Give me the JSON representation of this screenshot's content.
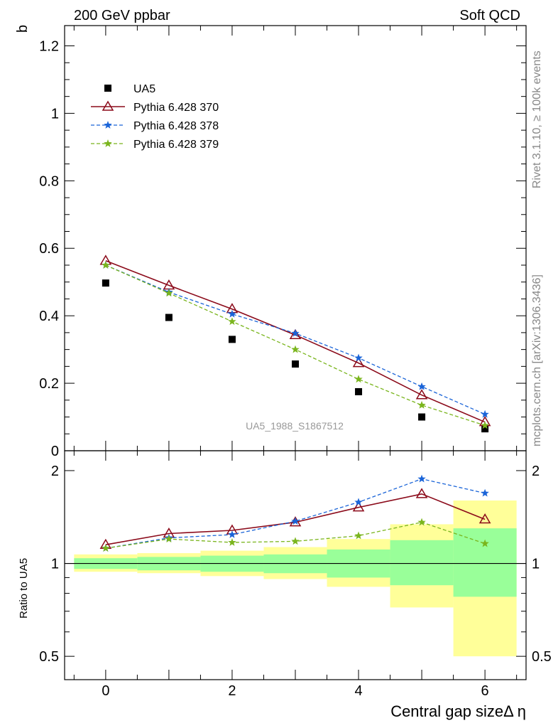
{
  "header": {
    "left": "200 GeV ppbar",
    "right": "Soft QCD"
  },
  "side_text": {
    "top": "Rivet 3.1.10, ≥ 100k events",
    "bottom": "mcplots.cern.ch [arXiv:1306.3436]"
  },
  "chart_data": {
    "type": "line",
    "watermark": "UA5_1988_S1867512",
    "xlabel": "Central gap sizeΔ η",
    "x_ticklabels": [
      "0",
      "2",
      "4",
      "6"
    ],
    "xlim": [
      -0.65,
      6.65
    ],
    "x": [
      0,
      1,
      2,
      3,
      4,
      5,
      6
    ],
    "main": {
      "ylabel": "b",
      "ylim": [
        0,
        1.26
      ],
      "y_ticklabels": [
        "0",
        "0.2",
        "0.4",
        "0.6",
        "0.8",
        "1",
        "1.2"
      ],
      "series": [
        {
          "name": "UA5",
          "values": [
            0.497,
            0.395,
            0.33,
            0.257,
            0.175,
            0.1,
            0.065
          ],
          "color": "#000000",
          "marker": "square",
          "line": "none"
        },
        {
          "name": "Pythia 6.428 370",
          "values": [
            0.563,
            0.49,
            0.42,
            0.343,
            0.26,
            0.165,
            0.085
          ],
          "color": "#8b0a1a",
          "marker": "triangle",
          "line": "solid"
        },
        {
          "name": "Pythia 6.428 378",
          "values": [
            0.55,
            0.47,
            0.405,
            0.348,
            0.275,
            0.19,
            0.108
          ],
          "color": "#1a64d8",
          "marker": "star",
          "line": "dashed"
        },
        {
          "name": "Pythia 6.428 379",
          "values": [
            0.55,
            0.467,
            0.383,
            0.3,
            0.212,
            0.135,
            0.075
          ],
          "color": "#7ab51d",
          "marker": "star",
          "line": "dashed"
        }
      ]
    },
    "ratio": {
      "ylabel": "Ratio to UA5",
      "scale": "log",
      "ylim": [
        0.42,
        2.32
      ],
      "y_ticklabels": [
        "0.5",
        "1",
        "2"
      ],
      "bands": [
        {
          "x": 0,
          "stat": [
            0.96,
            1.04
          ],
          "total": [
            0.94,
            1.07
          ]
        },
        {
          "x": 1,
          "stat": [
            0.95,
            1.05
          ],
          "total": [
            0.93,
            1.08
          ]
        },
        {
          "x": 2,
          "stat": [
            0.94,
            1.06
          ],
          "total": [
            0.91,
            1.1
          ]
        },
        {
          "x": 3,
          "stat": [
            0.93,
            1.07
          ],
          "total": [
            0.89,
            1.13
          ]
        },
        {
          "x": 4,
          "stat": [
            0.9,
            1.11
          ],
          "total": [
            0.84,
            1.2
          ]
        },
        {
          "x": 5,
          "stat": [
            0.85,
            1.19
          ],
          "total": [
            0.72,
            1.34
          ]
        },
        {
          "x": 6,
          "stat": [
            0.78,
            1.3
          ],
          "total": [
            0.5,
            1.6
          ]
        }
      ],
      "series": [
        {
          "name": "Pythia 6.428 370",
          "values": [
            1.15,
            1.25,
            1.28,
            1.36,
            1.52,
            1.68,
            1.39
          ],
          "color": "#8b0a1a",
          "marker": "triangle",
          "line": "solid"
        },
        {
          "name": "Pythia 6.428 378",
          "values": [
            1.12,
            1.21,
            1.24,
            1.37,
            1.58,
            1.88,
            1.69
          ],
          "color": "#1a64d8",
          "marker": "star",
          "line": "dashed"
        },
        {
          "name": "Pythia 6.428 379",
          "values": [
            1.12,
            1.2,
            1.17,
            1.18,
            1.23,
            1.36,
            1.16
          ],
          "color": "#7ab51d",
          "marker": "star",
          "line": "dashed"
        }
      ]
    },
    "band_colors": {
      "stat": "#99ff99",
      "total": "#ffff99"
    }
  }
}
